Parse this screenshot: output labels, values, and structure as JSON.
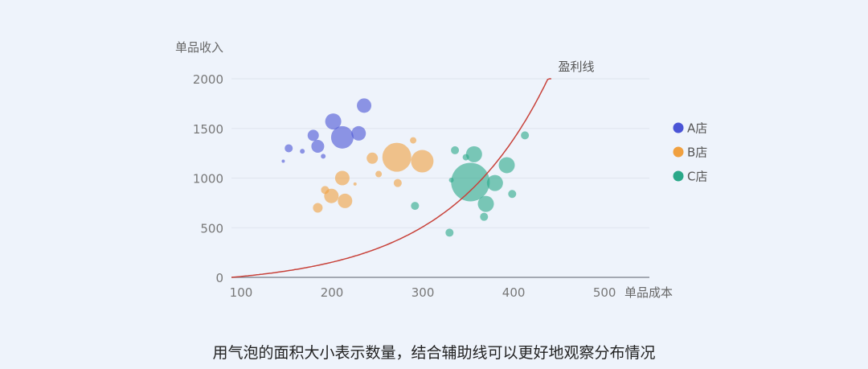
{
  "caption": "用气泡的面积大小表示数量，结合辅助线可以更好地观察分布情况",
  "chart_data": {
    "type": "scatter",
    "xlabel": "单品成本",
    "ylabel": "单品收入",
    "xlim": [
      100,
      560
    ],
    "ylim": [
      0,
      2000
    ],
    "x_ticks": [
      "100",
      "200",
      "300",
      "400",
      "500"
    ],
    "y_ticks": [
      "0",
      "500",
      "1000",
      "1500",
      "2000"
    ],
    "grid": true,
    "legend_position": "right",
    "annotation": "盈利线",
    "profit_line": {
      "formula": "exponential",
      "points": [
        [
          100,
          0
        ],
        [
          150,
          125
        ],
        [
          200,
          265
        ],
        [
          250,
          425
        ],
        [
          300,
          620
        ],
        [
          350,
          880
        ],
        [
          400,
          1260
        ],
        [
          450,
          2000
        ]
      ]
    },
    "series": [
      {
        "name": "A店",
        "color": "#4a54d6",
        "points": [
          {
            "x": 157,
            "y": 1170,
            "size": 2
          },
          {
            "x": 163,
            "y": 1300,
            "size": 5
          },
          {
            "x": 178,
            "y": 1270,
            "size": 3
          },
          {
            "x": 190,
            "y": 1430,
            "size": 7
          },
          {
            "x": 195,
            "y": 1320,
            "size": 8
          },
          {
            "x": 201,
            "y": 1220,
            "size": 3
          },
          {
            "x": 212,
            "y": 1570,
            "size": 10
          },
          {
            "x": 222,
            "y": 1410,
            "size": 14
          },
          {
            "x": 240,
            "y": 1450,
            "size": 9
          },
          {
            "x": 246,
            "y": 1730,
            "size": 9
          }
        ]
      },
      {
        "name": "B店",
        "color": "#f0a040",
        "points": [
          {
            "x": 195,
            "y": 700,
            "size": 6
          },
          {
            "x": 203,
            "y": 880,
            "size": 5
          },
          {
            "x": 210,
            "y": 820,
            "size": 9
          },
          {
            "x": 222,
            "y": 1000,
            "size": 9
          },
          {
            "x": 225,
            "y": 770,
            "size": 9
          },
          {
            "x": 236,
            "y": 940,
            "size": 2
          },
          {
            "x": 255,
            "y": 1200,
            "size": 7
          },
          {
            "x": 262,
            "y": 1040,
            "size": 4
          },
          {
            "x": 282,
            "y": 1210,
            "size": 18
          },
          {
            "x": 283,
            "y": 950,
            "size": 5
          },
          {
            "x": 300,
            "y": 1380,
            "size": 4
          },
          {
            "x": 310,
            "y": 1170,
            "size": 14
          }
        ]
      },
      {
        "name": "C店",
        "color": "#2aa889",
        "points": [
          {
            "x": 302,
            "y": 720,
            "size": 5
          },
          {
            "x": 340,
            "y": 450,
            "size": 5
          },
          {
            "x": 342,
            "y": 980,
            "size": 3
          },
          {
            "x": 346,
            "y": 1280,
            "size": 5
          },
          {
            "x": 358,
            "y": 1210,
            "size": 4
          },
          {
            "x": 363,
            "y": 960,
            "size": 24
          },
          {
            "x": 367,
            "y": 1240,
            "size": 10
          },
          {
            "x": 378,
            "y": 610,
            "size": 5
          },
          {
            "x": 380,
            "y": 740,
            "size": 10
          },
          {
            "x": 390,
            "y": 950,
            "size": 10
          },
          {
            "x": 403,
            "y": 1130,
            "size": 10
          },
          {
            "x": 409,
            "y": 840,
            "size": 5
          },
          {
            "x": 423,
            "y": 1430,
            "size": 5
          }
        ]
      }
    ]
  }
}
